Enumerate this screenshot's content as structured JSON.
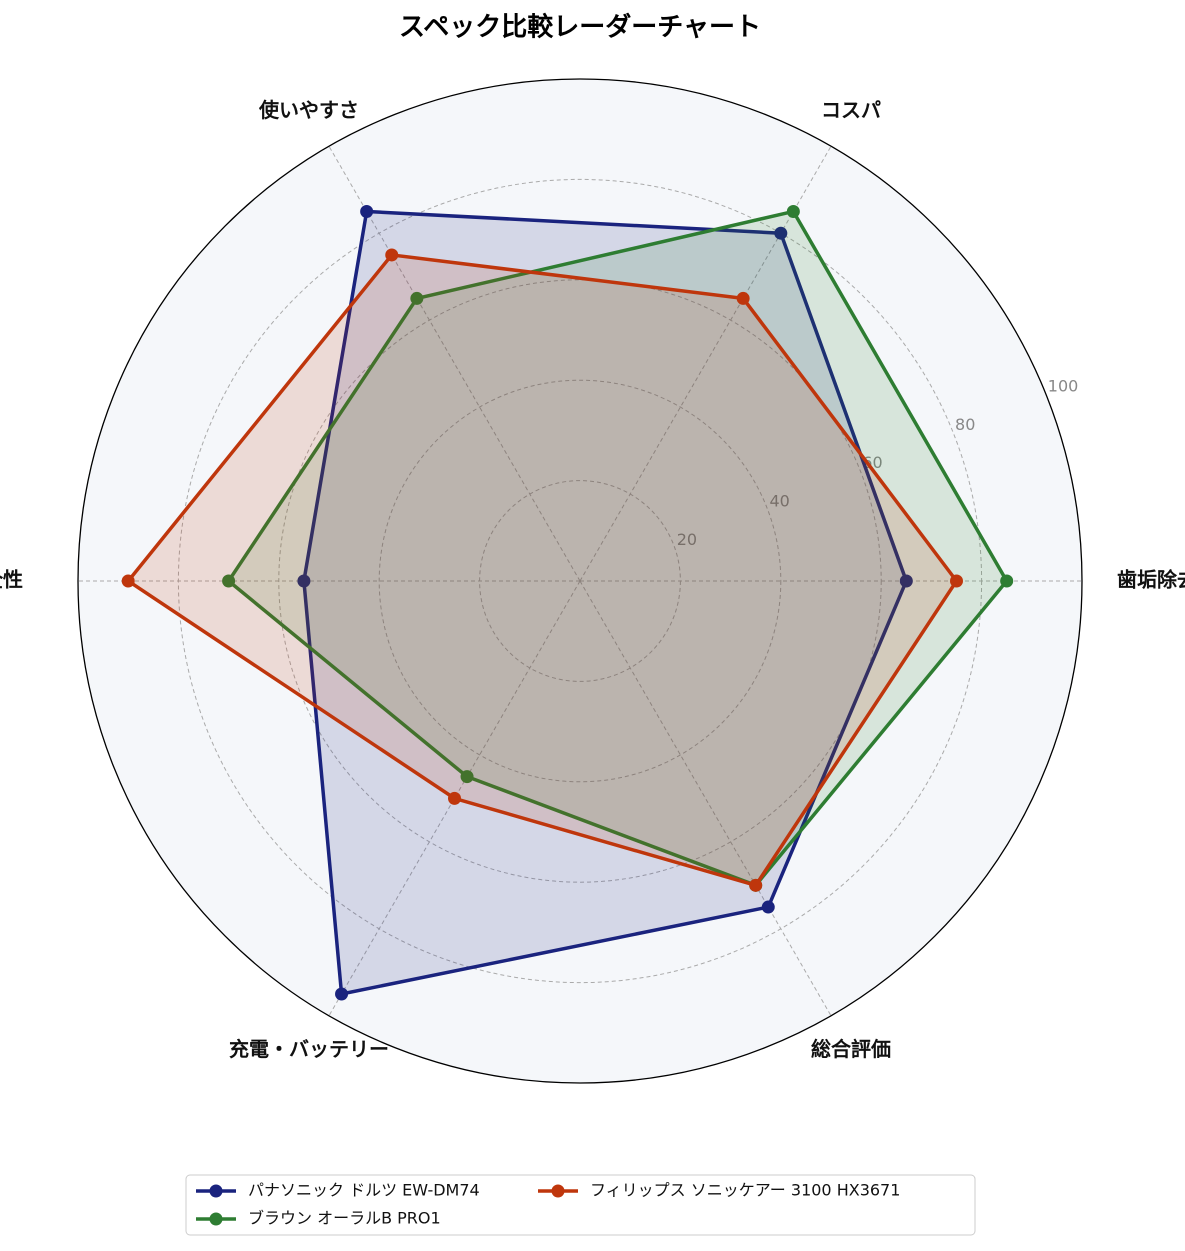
{
  "chart_data": {
    "type": "radar",
    "title": "スペック比較レーダーチャート",
    "categories": [
      "歯垢除去力",
      "コスパ",
      "使いやすさ",
      "安全性",
      "充電・バッテリー",
      "総合評価"
    ],
    "series": [
      {
        "name": "パナソニック ドルツ EW-DM74",
        "color": "#1a237e",
        "values": [
          65,
          80,
          85,
          55,
          95,
          75
        ]
      },
      {
        "name": "ブラウン オーラルB PRO1",
        "color": "#2e7d32",
        "values": [
          85,
          85,
          65,
          70,
          45,
          70
        ]
      },
      {
        "name": "フィリップス ソニッケアー 3100 HX3671",
        "color": "#bf360c",
        "values": [
          75,
          65,
          75,
          90,
          50,
          70
        ]
      }
    ],
    "ylim": [
      0,
      100
    ],
    "yticks": [
      20,
      40,
      60,
      80,
      100
    ],
    "grid": true
  }
}
